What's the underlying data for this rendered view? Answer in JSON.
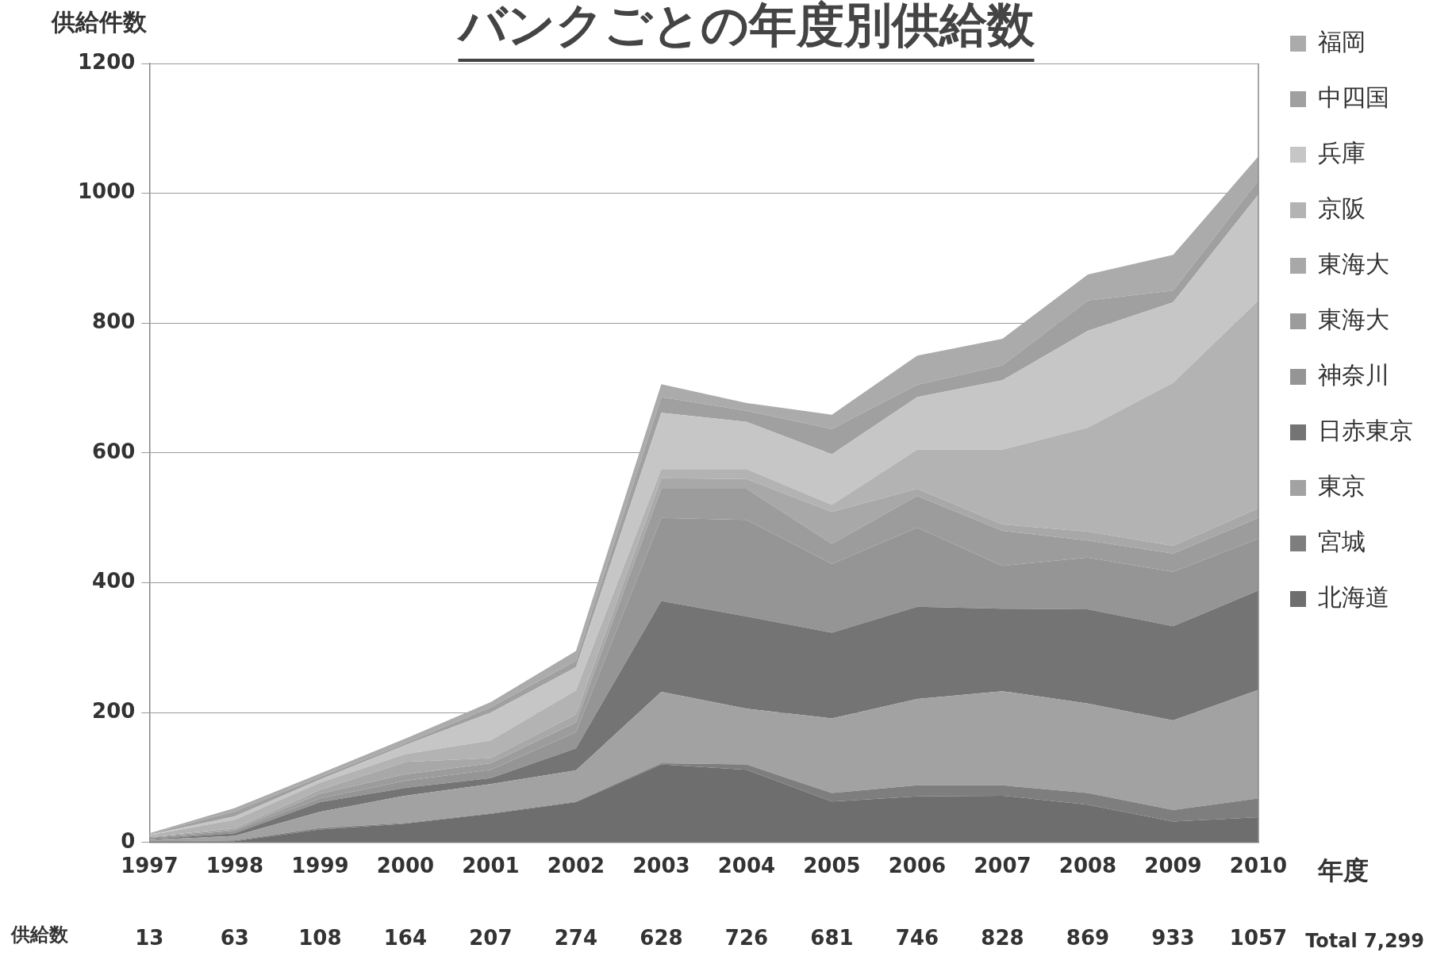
{
  "chart_data": {
    "type": "area",
    "stacked": true,
    "title": "バンクごとの年度別供給数",
    "ylabel": "供給件数",
    "xlabel": "年度",
    "categories": [
      "1997",
      "1998",
      "1999",
      "2000",
      "2001",
      "2002",
      "2003",
      "2004",
      "2005",
      "2006",
      "2007",
      "2008",
      "2009",
      "2010"
    ],
    "ylim": [
      0,
      1200
    ],
    "yticks": [
      0,
      200,
      400,
      600,
      800,
      1000,
      1200
    ],
    "grid": "y",
    "legend": "right",
    "annotations": [
      "供給数",
      "13",
      "63",
      "108",
      "164",
      "207",
      "274",
      "628",
      "726",
      "681",
      "746",
      "828",
      "869",
      "933",
      "1057",
      "Total 7,299"
    ],
    "series": [
      {
        "name": "北海道",
        "color": "#6e6e6e",
        "values": [
          1,
          2,
          20,
          29,
          44,
          62,
          120,
          112,
          63,
          71,
          72,
          58,
          32,
          39
        ]
      },
      {
        "name": "宮城",
        "color": "#7e7e7e",
        "values": [
          1,
          1,
          2,
          1,
          1,
          1,
          2,
          8,
          13,
          17,
          16,
          18,
          18,
          29
        ]
      },
      {
        "name": "東京",
        "color": "#a2a2a2",
        "values": [
          2,
          7,
          25,
          42,
          45,
          48,
          110,
          86,
          115,
          133,
          145,
          138,
          138,
          167
        ]
      },
      {
        "name": "日赤東京",
        "color": "#747474",
        "values": [
          1,
          4,
          15,
          12,
          9,
          34,
          140,
          142,
          132,
          142,
          127,
          145,
          145,
          153
        ]
      },
      {
        "name": "神奈川",
        "color": "#959595",
        "values": [
          2,
          4,
          6,
          11,
          13,
          25,
          128,
          149,
          106,
          122,
          66,
          80,
          84,
          80
        ]
      },
      {
        "name": "東海大",
        "color": "#9c9c9c",
        "values": [
          1,
          2,
          7,
          10,
          10,
          15,
          45,
          48,
          31,
          49,
          54,
          26,
          28,
          32
        ]
      },
      {
        "name": "東海大",
        "color": "#a8a8a8",
        "values": [
          1,
          2,
          6,
          19,
          8,
          12,
          16,
          15,
          49,
          11,
          10,
          14,
          12,
          15
        ]
      },
      {
        "name": "京阪",
        "color": "#b3b3b3",
        "values": [
          2,
          13,
          11,
          12,
          27,
          37,
          14,
          15,
          11,
          60,
          115,
          160,
          251,
          320
        ]
      },
      {
        "name": "兵庫",
        "color": "#c6c6c6",
        "values": [
          1,
          5,
          5,
          14,
          43,
          36,
          87,
          73,
          78,
          81,
          107,
          149,
          124,
          163
        ]
      },
      {
        "name": "中四国",
        "color": "#a0a0a0",
        "values": [
          1,
          8,
          4,
          3,
          8,
          10,
          24,
          17,
          39,
          19,
          23,
          47,
          18,
          22
        ]
      },
      {
        "name": "福岡",
        "color": "#ababab",
        "values": [
          1,
          5,
          5,
          7,
          8,
          15,
          20,
          12,
          22,
          45,
          41,
          40,
          55,
          37
        ]
      }
    ]
  }
}
